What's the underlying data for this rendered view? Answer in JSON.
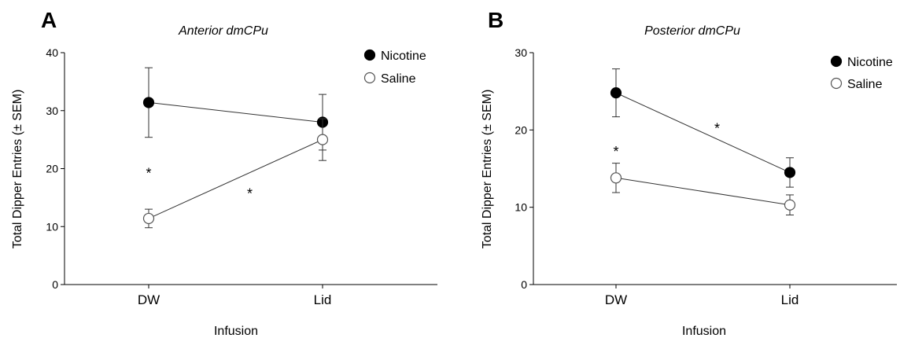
{
  "chart_data": [
    {
      "type": "line",
      "panel": "A",
      "title": "Anterior dmCPu",
      "xlabel": "Infusion",
      "ylabel": "Total Dipper Entries (± SEM)",
      "categories": [
        "DW",
        "Lid"
      ],
      "ylim": [
        0,
        40
      ],
      "yticks": [
        "0",
        "10",
        "20",
        "30",
        "40"
      ],
      "legend_position": "top-right",
      "series": [
        {
          "name": "Nicotine",
          "marker": "filled",
          "values": [
            31.4,
            28.0
          ],
          "sem": [
            6.0,
            4.8
          ]
        },
        {
          "name": "Saline",
          "marker": "open",
          "values": [
            11.4,
            25.0
          ],
          "sem": [
            1.6,
            3.6
          ]
        }
      ],
      "annotations": [
        {
          "text": "*",
          "category": "DW",
          "y": 20
        },
        {
          "text": "*",
          "between": [
            "DW",
            "Lid"
          ],
          "y": 16.5
        }
      ]
    },
    {
      "type": "line",
      "panel": "B",
      "title": "Posterior dmCPu",
      "xlabel": "Infusion",
      "ylabel": "Total Dipper Entries (± SEM)",
      "categories": [
        "DW",
        "Lid"
      ],
      "ylim": [
        0,
        30
      ],
      "yticks": [
        "0",
        "10",
        "20",
        "30"
      ],
      "legend_position": "top-right",
      "series": [
        {
          "name": "Nicotine",
          "marker": "filled",
          "values": [
            24.8,
            14.5
          ],
          "sem": [
            3.1,
            1.9
          ]
        },
        {
          "name": "Saline",
          "marker": "open",
          "values": [
            13.8,
            10.3
          ],
          "sem": [
            1.9,
            1.3
          ]
        }
      ],
      "annotations": [
        {
          "text": "*",
          "category": "DW",
          "y": 17.8
        },
        {
          "text": "*",
          "between": [
            "DW",
            "Lid"
          ],
          "y": 20.8
        }
      ]
    }
  ]
}
